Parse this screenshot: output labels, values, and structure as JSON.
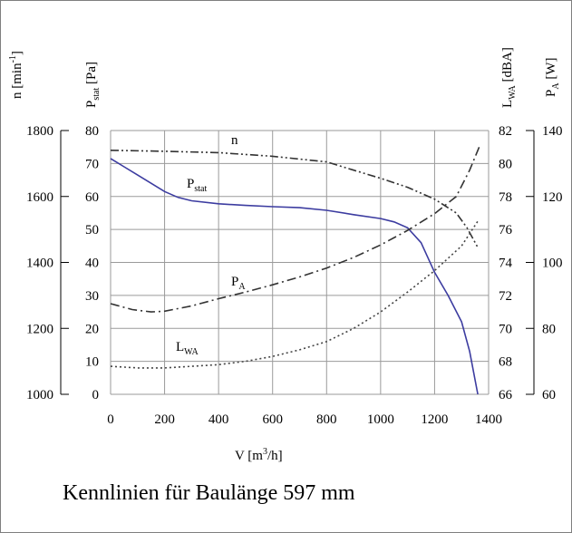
{
  "caption": "Kennlinien für Baulänge 597 mm",
  "chart_data": {
    "type": "line",
    "title": "",
    "x": {
      "label_main": "V [m",
      "label_sup": "3",
      "label_tail": "/h]",
      "range": [
        0,
        1400
      ],
      "ticks": [
        0,
        200,
        400,
        600,
        800,
        1000,
        1200,
        1400
      ]
    },
    "grid": true,
    "axes": {
      "n": {
        "label_main": "n [min",
        "label_sup": "-1",
        "label_tail": "]",
        "range": [
          1000,
          1800
        ],
        "ticks": [
          1000,
          1200,
          1400,
          1600,
          1800
        ]
      },
      "pstat": {
        "label_main": "P",
        "label_sub": "stat",
        "label_tail": " [Pa]",
        "range": [
          0,
          80
        ],
        "ticks": [
          0,
          10,
          20,
          30,
          40,
          50,
          60,
          70,
          80
        ]
      },
      "lwa": {
        "label_main": "L",
        "label_sub": "WA",
        "label_tail": " [dBA]",
        "range": [
          66,
          82
        ],
        "ticks": [
          66,
          68,
          70,
          72,
          74,
          76,
          78,
          80,
          82
        ]
      },
      "pa": {
        "label_main": "P",
        "label_sub": "A",
        "label_tail": " [W]",
        "range": [
          60,
          140
        ],
        "ticks": [
          60,
          80,
          100,
          120,
          140
        ]
      }
    },
    "series": [
      {
        "name_main": "P",
        "name_sub": "stat",
        "axis": "pstat",
        "color": "#3c3ca0",
        "dash": "",
        "points": [
          [
            0,
            71.5
          ],
          [
            50,
            69
          ],
          [
            100,
            66.5
          ],
          [
            150,
            64
          ],
          [
            200,
            61.5
          ],
          [
            250,
            59.7
          ],
          [
            300,
            58.7
          ],
          [
            400,
            57.8
          ],
          [
            500,
            57.3
          ],
          [
            600,
            56.9
          ],
          [
            700,
            56.6
          ],
          [
            800,
            55.8
          ],
          [
            900,
            54.5
          ],
          [
            1000,
            53.3
          ],
          [
            1050,
            52.3
          ],
          [
            1100,
            50.5
          ],
          [
            1150,
            46
          ],
          [
            1200,
            37
          ],
          [
            1250,
            30
          ],
          [
            1300,
            22
          ],
          [
            1330,
            13
          ],
          [
            1360,
            0
          ]
        ]
      },
      {
        "name_main": "n",
        "name_sub": "",
        "axis": "n",
        "color": "#333333",
        "dash": "9 3 2 3 2 3",
        "points": [
          [
            0,
            1740
          ],
          [
            200,
            1737
          ],
          [
            400,
            1733
          ],
          [
            600,
            1722
          ],
          [
            800,
            1705
          ],
          [
            900,
            1680
          ],
          [
            1000,
            1655
          ],
          [
            1100,
            1628
          ],
          [
            1200,
            1592
          ],
          [
            1280,
            1550
          ],
          [
            1320,
            1505
          ],
          [
            1360,
            1445
          ]
        ]
      },
      {
        "name_main": "P",
        "name_sub": "A",
        "axis": "pa",
        "color": "#333333",
        "dash": "10 4 2 4",
        "points": [
          [
            0,
            87.5
          ],
          [
            80,
            85.7
          ],
          [
            150,
            85
          ],
          [
            200,
            85.2
          ],
          [
            300,
            86.8
          ],
          [
            400,
            89
          ],
          [
            500,
            91
          ],
          [
            600,
            93.2
          ],
          [
            700,
            95.6
          ],
          [
            800,
            98.3
          ],
          [
            900,
            101.5
          ],
          [
            1000,
            105.3
          ],
          [
            1100,
            109.7
          ],
          [
            1200,
            114.8
          ],
          [
            1280,
            120
          ],
          [
            1330,
            128
          ],
          [
            1365,
            135
          ]
        ]
      },
      {
        "name_main": "L",
        "name_sub": "WA",
        "axis": "lwa",
        "color": "#444444",
        "dash": "2 3",
        "points": [
          [
            0,
            67.7
          ],
          [
            100,
            67.6
          ],
          [
            200,
            67.6
          ],
          [
            300,
            67.7
          ],
          [
            400,
            67.8
          ],
          [
            500,
            68
          ],
          [
            600,
            68.3
          ],
          [
            700,
            68.7
          ],
          [
            800,
            69.2
          ],
          [
            900,
            70
          ],
          [
            1000,
            71
          ],
          [
            1100,
            72.2
          ],
          [
            1200,
            73.5
          ],
          [
            1300,
            75
          ],
          [
            1360,
            76.5
          ]
        ]
      }
    ]
  }
}
